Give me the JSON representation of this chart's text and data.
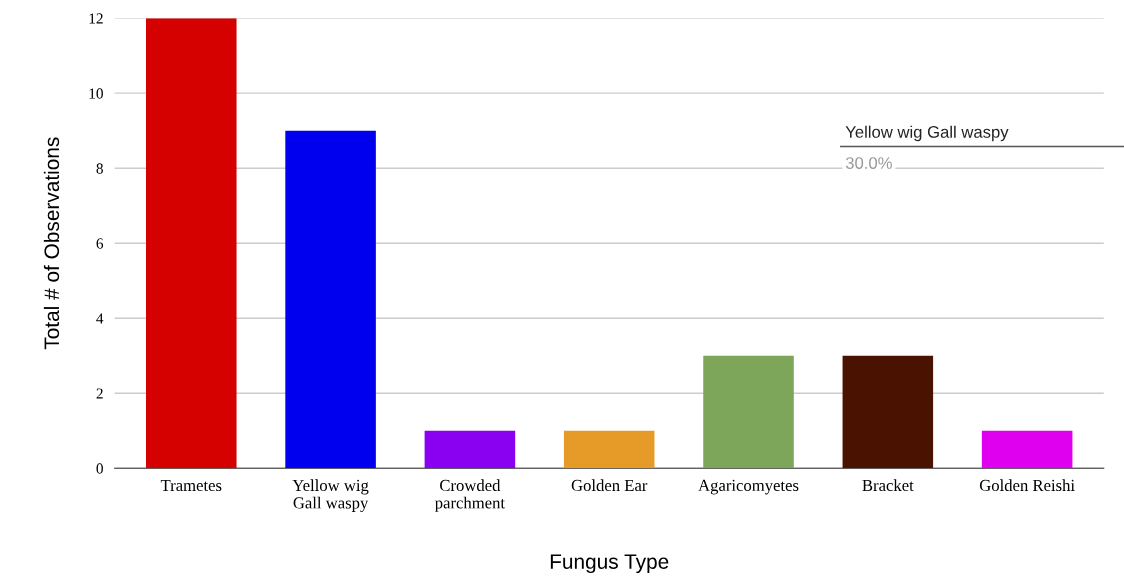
{
  "chart_data": {
    "type": "bar",
    "xlabel": "Fungus Type",
    "ylabel": "Total # of Observations",
    "categories": [
      "Trametes",
      "Yellow wig\nGall waspy",
      "Crowded\nparchment",
      "Golden Ear",
      "Agaricomyetes",
      "Bracket",
      "Golden Reishi"
    ],
    "values": [
      12,
      9,
      1,
      1,
      3,
      3,
      1
    ],
    "colors": [
      "#d50000",
      "#0000ee",
      "#8a00f0",
      "#e69a28",
      "#7ea65a",
      "#4a1200",
      "#e000f0"
    ],
    "ylim": [
      0,
      12
    ],
    "yticks": [
      0,
      2,
      4,
      6,
      8,
      10,
      12
    ],
    "grid": "y",
    "legend": false,
    "annotations": [
      "Yellow wig Gall waspy",
      "30.0%"
    ]
  }
}
